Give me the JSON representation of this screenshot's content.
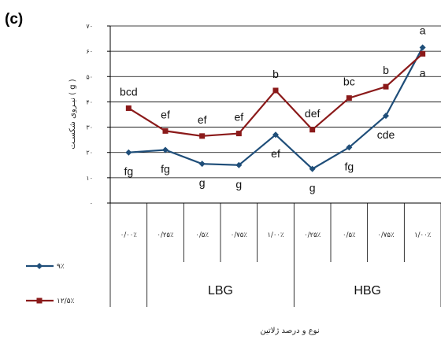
{
  "panel_label": "(c)",
  "chart_data": {
    "type": "line",
    "title": "",
    "ylabel": "نیـروی شکسـت ( g )",
    "xlabel": "نوع و درصد ژلاتین",
    "ylim": [
      0,
      70
    ],
    "y_tick_labels": [
      "۰",
      "۱۰",
      "۲۰",
      "۳۰",
      "۴۰",
      "۵۰",
      "۶۰",
      "۷۰"
    ],
    "grid": true,
    "legend_position": "bottom-left",
    "categories": [
      "۰/۰۰٪",
      "۰/۲۵٪",
      "۰/۵٪",
      "۰/۷۵٪",
      "۱/۰۰٪",
      "۰/۲۵٪",
      "۰/۵٪",
      "۰/۷۵٪",
      "۱/۰۰٪"
    ],
    "groups": [
      {
        "name": "LBG",
        "span": [
          1,
          4
        ]
      },
      {
        "name": "HBG",
        "span": [
          5,
          8
        ]
      }
    ],
    "series": [
      {
        "name": "۹٪",
        "color": "#1f4e79",
        "marker": "diamond",
        "values": [
          20,
          21,
          15.5,
          15,
          27,
          13.5,
          22,
          34.5,
          61.5
        ],
        "labels": [
          "fg",
          "fg",
          "g",
          "g",
          "ef",
          "g",
          "fg",
          "cde",
          "a"
        ]
      },
      {
        "name": "۱۲/۵٪",
        "color": "#8b1a1a",
        "marker": "square",
        "values": [
          37.5,
          28.5,
          26.5,
          27.5,
          44.5,
          29,
          41.5,
          46,
          59
        ],
        "labels": [
          "bcd",
          "ef",
          "ef",
          "ef",
          "b",
          "def",
          "bc",
          "b",
          "a"
        ]
      }
    ]
  }
}
